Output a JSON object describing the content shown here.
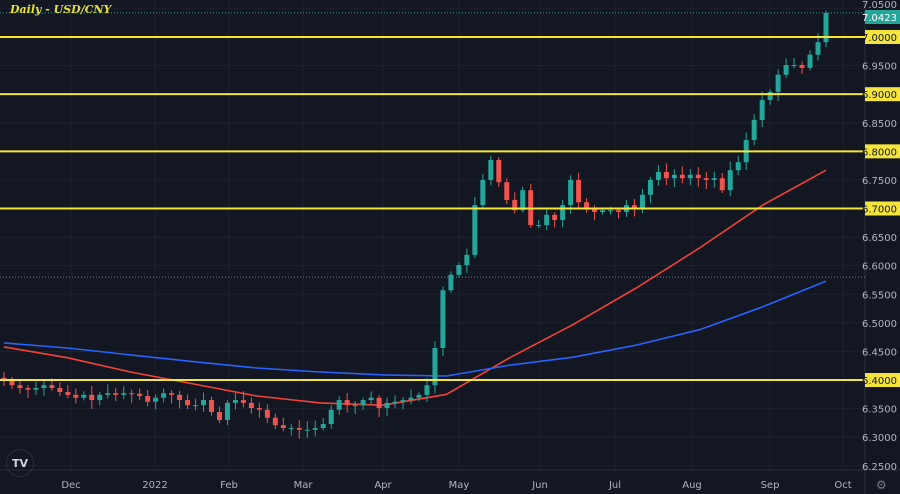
{
  "title": "Daily - USD/CNY",
  "logo_text": "TV",
  "settings_icon": "gear-icon",
  "colors": {
    "background": "#131722",
    "up": "#26a69a",
    "down": "#ef5350",
    "level": "#f5e43a",
    "ma_red": "#f44336",
    "ma_blue": "#2962ff",
    "last_price_bg": "#26a69a"
  },
  "chart_data": {
    "type": "candlestick",
    "title": "Daily - USD/CNY",
    "ylim": [
      6.25,
      7.05
    ],
    "y_ticks": [
      "7.0500",
      "7.0000",
      "6.9500",
      "6.9000",
      "6.8500",
      "6.8000",
      "6.7500",
      "6.7000",
      "6.6500",
      "6.6000",
      "6.5500",
      "6.5000",
      "6.4500",
      "6.4000",
      "6.3500",
      "6.3000",
      "6.2500"
    ],
    "x_ticks": [
      "Dec",
      "2022",
      "Feb",
      "Mar",
      "Apr",
      "May",
      "Jun",
      "Jul",
      "Aug",
      "Sep",
      "Oct"
    ],
    "grid": true,
    "last_price": "7.0423",
    "horizontal_levels": [
      "7.0000",
      "6.9000",
      "6.8000",
      "6.7000",
      "6.4000"
    ],
    "dotted_level": 6.58,
    "closes": [
      6.4,
      6.391,
      6.386,
      6.383,
      6.386,
      6.391,
      6.386,
      6.379,
      6.374,
      6.369,
      6.374,
      6.365,
      6.374,
      6.377,
      6.374,
      6.377,
      6.376,
      6.372,
      6.362,
      6.369,
      6.377,
      6.374,
      6.365,
      6.356,
      6.356,
      6.365,
      6.344,
      6.33,
      6.36,
      6.365,
      6.36,
      6.351,
      6.348,
      6.334,
      6.321,
      6.316,
      6.316,
      6.313,
      6.313,
      6.316,
      6.323,
      6.348,
      6.365,
      6.356,
      6.356,
      6.365,
      6.369,
      6.351,
      6.36,
      6.362,
      6.365,
      6.369,
      6.374,
      6.391,
      6.456,
      6.557,
      6.584,
      6.601,
      6.619,
      6.706,
      6.75,
      6.785,
      6.746,
      6.715,
      6.697,
      6.732,
      6.671,
      6.671,
      6.689,
      6.68,
      6.706,
      6.75,
      6.711,
      6.701,
      6.694,
      6.697,
      6.697,
      6.694,
      6.706,
      6.701,
      6.724,
      6.75,
      6.764,
      6.753,
      6.759,
      6.753,
      6.759,
      6.753,
      6.75,
      6.753,
      6.732,
      6.767,
      6.781,
      6.82,
      6.855,
      6.89,
      6.904,
      6.934,
      6.951,
      6.951,
      6.946,
      6.969,
      6.991,
      7.042
    ],
    "series": [
      {
        "color": "#f44336",
        "values": [
          6.458,
          6.439,
          6.414,
          6.393,
          6.372,
          6.36,
          6.356,
          6.375,
          6.439,
          6.497,
          6.561,
          6.631,
          6.706,
          6.767
        ]
      },
      {
        "color": "#2962ff",
        "values": [
          6.465,
          6.456,
          6.444,
          6.432,
          6.421,
          6.414,
          6.409,
          6.407,
          6.426,
          6.44,
          6.461,
          6.488,
          6.528,
          6.573
        ]
      }
    ]
  }
}
